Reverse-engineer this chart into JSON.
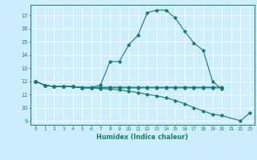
{
  "title": "",
  "xlabel": "Humidex (Indice chaleur)",
  "bg_color": "#cceeff",
  "line_color": "#1a7a6e",
  "grid_color": "#ffffff",
  "xlim": [
    -0.5,
    23.5
  ],
  "ylim": [
    8.7,
    17.8
  ],
  "yticks": [
    9,
    10,
    11,
    12,
    13,
    14,
    15,
    16,
    17
  ],
  "xticks": [
    0,
    1,
    2,
    3,
    4,
    5,
    6,
    7,
    8,
    9,
    10,
    11,
    12,
    13,
    14,
    15,
    16,
    17,
    18,
    19,
    20,
    21,
    22,
    23
  ],
  "curves": [
    {
      "x": [
        0,
        1,
        2,
        3,
        4,
        5,
        6,
        7,
        8,
        9,
        10,
        11,
        12,
        13,
        14,
        15,
        16,
        17,
        18,
        19,
        20
      ],
      "y": [
        12.0,
        11.7,
        11.6,
        11.6,
        11.6,
        11.5,
        11.5,
        11.75,
        13.5,
        13.5,
        14.75,
        15.5,
        17.2,
        17.4,
        17.4,
        16.8,
        15.8,
        14.9,
        14.35,
        12.0,
        11.4
      ]
    },
    {
      "x": [
        0,
        1,
        2,
        3,
        4,
        5,
        6,
        7,
        8,
        9,
        10,
        11,
        12,
        13,
        14,
        15,
        16,
        17,
        18,
        19,
        20
      ],
      "y": [
        12.0,
        11.7,
        11.6,
        11.6,
        11.6,
        11.55,
        11.55,
        11.55,
        11.55,
        11.55,
        11.55,
        11.55,
        11.55,
        11.55,
        11.55,
        11.55,
        11.55,
        11.55,
        11.55,
        11.55,
        11.55
      ]
    },
    {
      "x": [
        0,
        1,
        2,
        3,
        4,
        5,
        6,
        7,
        8,
        9,
        10,
        11,
        12,
        13,
        14,
        15,
        16,
        17,
        18,
        19,
        20
      ],
      "y": [
        12.0,
        11.7,
        11.6,
        11.6,
        11.6,
        11.5,
        11.5,
        11.5,
        11.5,
        11.5,
        11.5,
        11.5,
        11.5,
        11.5,
        11.5,
        11.5,
        11.5,
        11.5,
        11.5,
        11.5,
        11.5
      ]
    },
    {
      "x": [
        0,
        1,
        2,
        3,
        4,
        5,
        6,
        7,
        8,
        9,
        10,
        11,
        12,
        13,
        14,
        15,
        16,
        17,
        18,
        19,
        20,
        22,
        23
      ],
      "y": [
        12.0,
        11.7,
        11.6,
        11.6,
        11.6,
        11.5,
        11.5,
        11.45,
        11.4,
        11.35,
        11.25,
        11.15,
        11.0,
        10.9,
        10.75,
        10.55,
        10.3,
        10.0,
        9.75,
        9.5,
        9.4,
        9.0,
        9.6
      ]
    }
  ]
}
